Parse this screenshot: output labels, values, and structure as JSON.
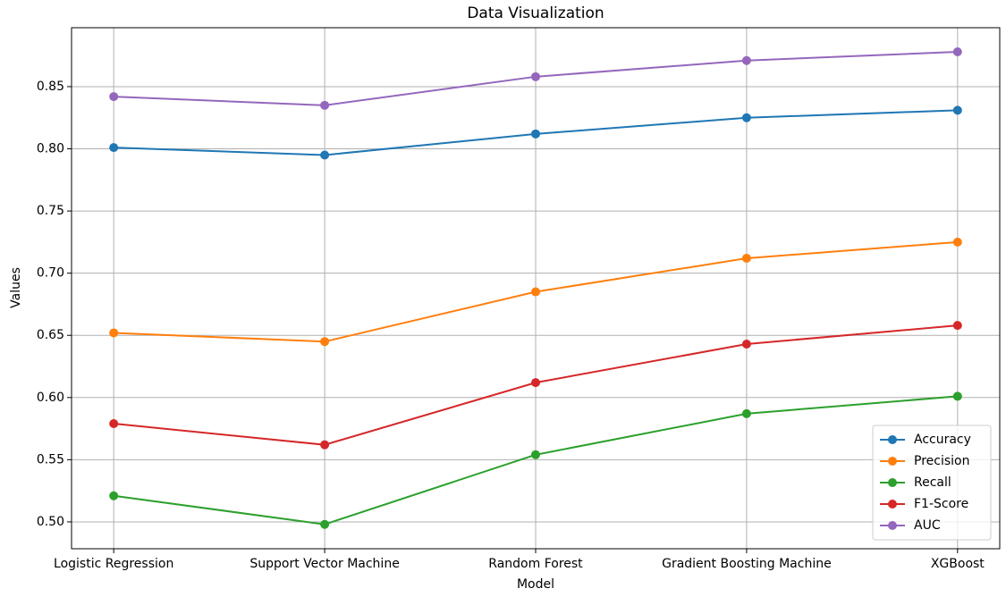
{
  "chart_data": {
    "type": "line",
    "title": "Data Visualization",
    "x_label": "Model",
    "y_label": "Values",
    "categories": [
      "Logistic Regression",
      "Support Vector Machine",
      "Random Forest",
      "Gradient Boosting Machine",
      "XGBoost"
    ],
    "series": [
      {
        "name": "Accuracy",
        "color": "#1f77b4",
        "values": [
          0.801,
          0.795,
          0.812,
          0.825,
          0.831
        ]
      },
      {
        "name": "Precision",
        "color": "#ff7f0e",
        "values": [
          0.652,
          0.645,
          0.685,
          0.712,
          0.725
        ]
      },
      {
        "name": "Recall",
        "color": "#2ca02c",
        "values": [
          0.521,
          0.498,
          0.554,
          0.587,
          0.601
        ]
      },
      {
        "name": "F1-Score",
        "color": "#d62728",
        "values": [
          0.579,
          0.562,
          0.612,
          0.643,
          0.658
        ]
      },
      {
        "name": "AUC",
        "color": "#9467bd",
        "values": [
          0.842,
          0.835,
          0.858,
          0.871,
          0.878
        ]
      }
    ],
    "ylim": [
      0.4784,
      0.8974
    ],
    "yticks": [
      {
        "value": 0.5,
        "label": "0.50"
      },
      {
        "value": 0.55,
        "label": "0.55"
      },
      {
        "value": 0.6,
        "label": "0.60"
      },
      {
        "value": 0.65,
        "label": "0.65"
      },
      {
        "value": 0.7,
        "label": "0.70"
      },
      {
        "value": 0.75,
        "label": "0.75"
      },
      {
        "value": 0.8,
        "label": "0.80"
      },
      {
        "value": 0.85,
        "label": "0.85"
      }
    ],
    "grid": true,
    "legend": "lower right"
  }
}
